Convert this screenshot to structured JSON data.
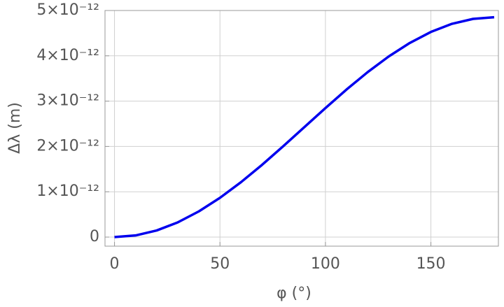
{
  "chart_data": {
    "type": "line",
    "x_label": "φ (°)",
    "y_label": "Δλ (m)",
    "x": [
      0,
      10,
      20,
      30,
      40,
      50,
      60,
      70,
      80,
      90,
      100,
      110,
      120,
      130,
      140,
      150,
      160,
      170,
      180
    ],
    "series": [
      {
        "color": "#0000ee",
        "values": [
          0,
          3.69e-14,
          1.463e-13,
          3.25e-13,
          5.676e-13,
          8.666e-13,
          1.213e-12,
          1.596e-12,
          2.005e-12,
          2.426e-12,
          2.847e-12,
          3.256e-12,
          3.639e-12,
          3.985e-12,
          4.284e-12,
          4.527e-12,
          4.706e-12,
          4.815e-12,
          4.852e-12
        ]
      }
    ],
    "xlim": [
      -4.5,
      182
    ],
    "xticks": [
      0,
      50,
      100,
      150
    ],
    "ylim": [
      -2e-13,
      5e-12
    ],
    "yticks": [
      0,
      {
        "value": 1e-12,
        "label": "1×10⁻¹²"
      },
      {
        "value": 2e-12,
        "label": "2×10⁻¹²"
      },
      {
        "value": 3e-12,
        "label": "3×10⁻¹²"
      },
      {
        "value": 4e-12,
        "label": "4×10⁻¹²"
      },
      {
        "value": 5e-12,
        "label": "5×10⁻¹²"
      }
    ],
    "grid": true
  }
}
